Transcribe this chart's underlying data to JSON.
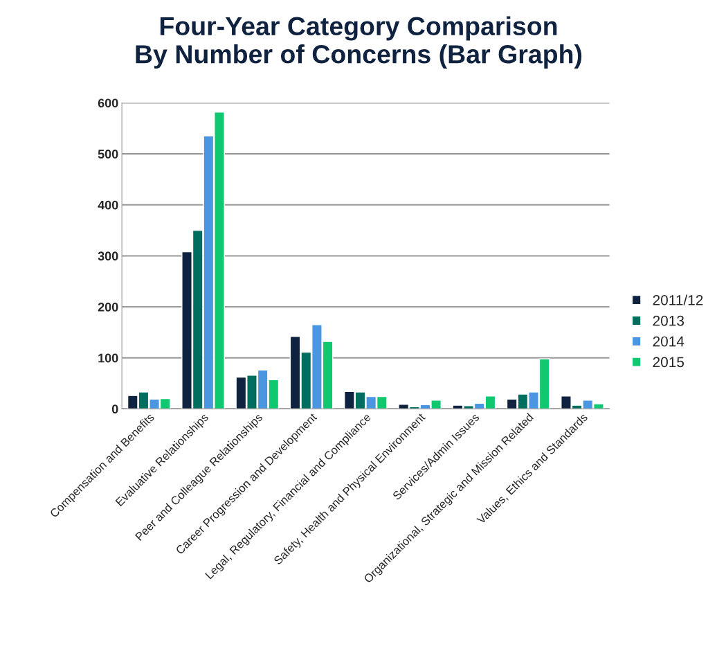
{
  "chart_data": {
    "type": "bar",
    "title": "Four-Year Category Comparison\nBy Number of Concerns (Bar Graph)",
    "categories": [
      "Compensation and Benefits",
      "Evaluative Relationships",
      "Peer and Colleague Relationships",
      "Career Progression and Development",
      "Legal, Regulatory, Financial and Compliance",
      "Safety, Health and Physical Environment",
      "Services/Admin Issues",
      "Organizational, Strategic and Mission Related",
      "Values, Ethics and Standards"
    ],
    "series": [
      {
        "name": "2011/12",
        "color": "#0f2340",
        "values": [
          26,
          308,
          62,
          142,
          34,
          9,
          7,
          19,
          25
        ]
      },
      {
        "name": "2013",
        "color": "#006e5f",
        "values": [
          33,
          350,
          66,
          111,
          33,
          4,
          6,
          29,
          7
        ]
      },
      {
        "name": "2014",
        "color": "#4a96e0",
        "values": [
          19,
          535,
          76,
          165,
          24,
          8,
          11,
          33,
          17
        ]
      },
      {
        "name": "2015",
        "color": "#10c870",
        "values": [
          20,
          582,
          57,
          132,
          24,
          17,
          25,
          98,
          10
        ]
      }
    ],
    "ylim": [
      0,
      600
    ],
    "yticks": [
      0,
      100,
      200,
      300,
      400,
      500,
      600
    ],
    "grid": "y",
    "legend": "right"
  }
}
